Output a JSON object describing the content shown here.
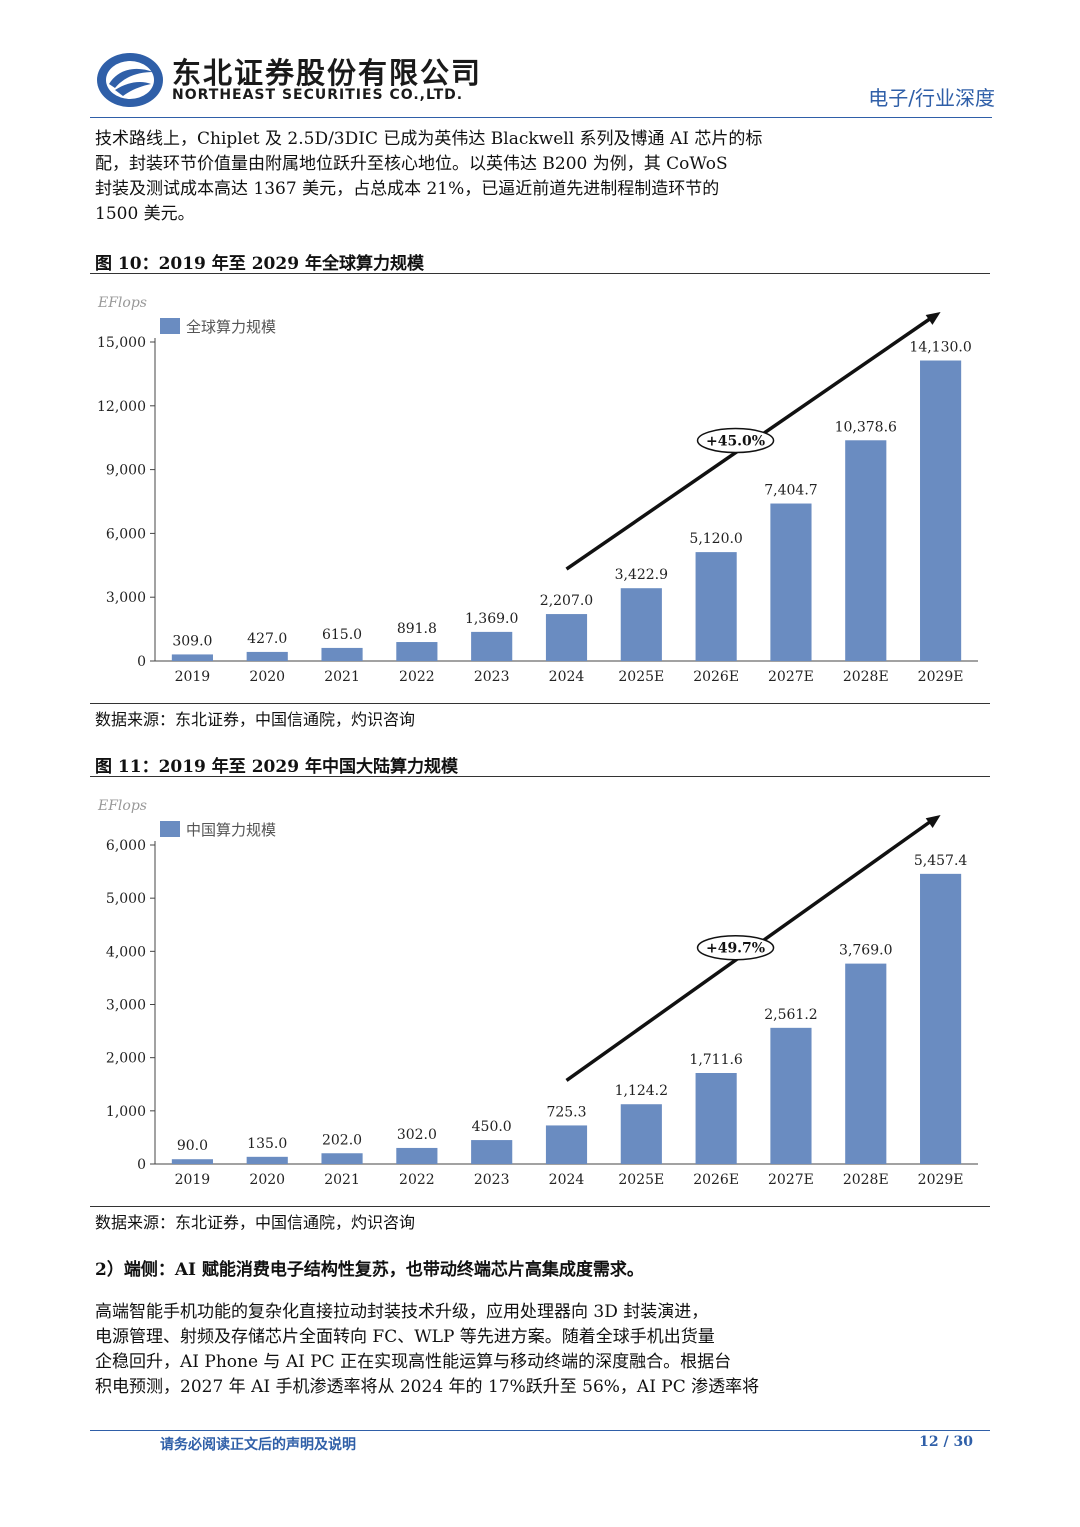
{
  "header": {
    "company_cn": "东北证券股份有限公司",
    "company_en": "NORTHEAST SECURITIES CO.,LTD.",
    "category": "电子/行业深度",
    "brand_color": "#2f5fa8"
  },
  "intro_lines": [
    "技术路线上，Chiplet 及 2.5D/3DIC 已成为英伟达 Blackwell 系列及博通 AI 芯片的标",
    "配，封装环节价值量由附属地位跃升至核心地位。以英伟达 B200 为例，其 CoWoS",
    "封装及测试成本高达 1367 美元，占总成本 21%，已逼近前道先进制程制造环节的",
    "1500 美元。"
  ],
  "figure10": {
    "title": "图 10：2019 年至 2029 年全球算力规模",
    "source": "数据来源：东北证券，中国信通院，灼识咨询"
  },
  "figure11": {
    "title": "图 11：2019 年至 2029 年中国大陆算力规模",
    "source": "数据来源：东北证券，中国信通院，灼识咨询"
  },
  "section": {
    "heading": "2）端侧：AI 赋能消费电子结构性复苏，也带动终端芯片高集成度需求。",
    "lines": [
      "高端智能手机功能的复杂化直接拉动封装技术升级，应用处理器向 3D 封装演进，",
      "电源管理、射频及存储芯片全面转向 FC、WLP 等先进方案。随着全球手机出货量",
      "企稳回升，AI Phone 与 AI PC 正在实现高性能运算与移动终端的深度融合。根据台",
      "积电预测，2027 年 AI 手机渗透率将从 2024 年的 17%跃升至 56%，AI PC 渗透率将"
    ]
  },
  "footer": {
    "note": "请务必阅读正文后的声明及说明",
    "page": "12 / 30"
  },
  "chart_data": [
    {
      "type": "bar",
      "unit": "EFlops",
      "categories": [
        "2019",
        "2020",
        "2021",
        "2022",
        "2023",
        "2024",
        "2025E",
        "2026E",
        "2027E",
        "2028E",
        "2029E"
      ],
      "series": [
        {
          "name": "全球算力规模",
          "values": [
            309.0,
            427.0,
            615.0,
            891.8,
            1369.0,
            2207.0,
            3422.9,
            5120.0,
            7404.7,
            10378.6,
            14130.0
          ]
        }
      ],
      "value_labels": [
        "309.0",
        "427.0",
        "615.0",
        "891.8",
        "1,369.0",
        "2,207.0",
        "3,422.9",
        "5,120.0",
        "7,404.7",
        "10,378.6",
        "14,130.0"
      ],
      "yticks": [
        0,
        3000,
        6000,
        9000,
        12000,
        15000
      ],
      "ytick_labels": [
        "0",
        "3,000",
        "6,000",
        "9,000",
        "12,000",
        "15,000"
      ],
      "ylim": [
        0,
        15000
      ],
      "annotation": "+45.0%",
      "legend_position": "top-left",
      "bar_color": "#6a8cc1",
      "grid": false
    },
    {
      "type": "bar",
      "unit": "EFlops",
      "categories": [
        "2019",
        "2020",
        "2021",
        "2022",
        "2023",
        "2024",
        "2025E",
        "2026E",
        "2027E",
        "2028E",
        "2029E"
      ],
      "series": [
        {
          "name": "中国算力规模",
          "values": [
            90.0,
            135.0,
            202.0,
            302.0,
            450.0,
            725.3,
            1124.2,
            1711.6,
            2561.2,
            3769.0,
            5457.4
          ]
        }
      ],
      "value_labels": [
        "90.0",
        "135.0",
        "202.0",
        "302.0",
        "450.0",
        "725.3",
        "1,124.2",
        "1,711.6",
        "2,561.2",
        "3,769.0",
        "5,457.4"
      ],
      "yticks": [
        0,
        1000,
        2000,
        3000,
        4000,
        5000,
        6000
      ],
      "ytick_labels": [
        "0",
        "1,000",
        "2,000",
        "3,000",
        "4,000",
        "5,000",
        "6,000"
      ],
      "ylim": [
        0,
        6000
      ],
      "annotation": "+49.7%",
      "legend_position": "top-left",
      "bar_color": "#6a8cc1",
      "grid": false
    }
  ]
}
